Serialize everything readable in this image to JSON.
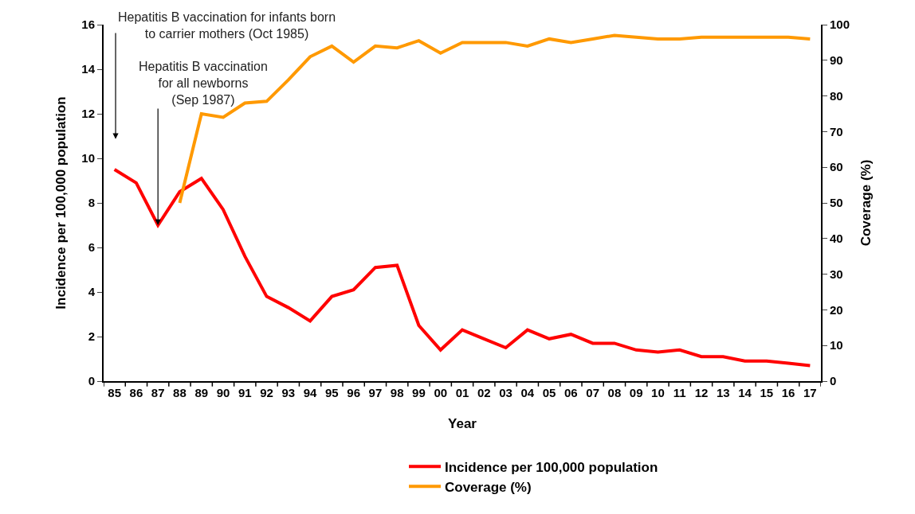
{
  "chart_data": {
    "type": "line",
    "xlabel": "Year",
    "ylabel": "Incidence per 100,000 population",
    "y2label": "Coverage (%)",
    "categories": [
      "85",
      "86",
      "87",
      "88",
      "89",
      "90",
      "91",
      "92",
      "93",
      "94",
      "95",
      "96",
      "97",
      "98",
      "99",
      "00",
      "01",
      "02",
      "03",
      "04",
      "05",
      "06",
      "07",
      "08",
      "09",
      "10",
      "11",
      "12",
      "13",
      "14",
      "15",
      "16",
      "17"
    ],
    "series": [
      {
        "name": "Incidence per 100,000 population",
        "color": "#ff0000",
        "values": [
          9.5,
          8.9,
          7.0,
          8.5,
          9.1,
          7.7,
          5.6,
          3.8,
          3.3,
          2.7,
          3.8,
          4.1,
          5.1,
          5.2,
          2.5,
          1.4,
          2.3,
          1.9,
          1.5,
          2.3,
          1.9,
          2.1,
          1.7,
          1.7,
          1.4,
          1.3,
          1.4,
          1.1,
          1.1,
          0.9,
          0.9,
          0.8,
          0.7
        ]
      },
      {
        "name": "Coverage (%)",
        "color": "#ff9900",
        "axis": "y2",
        "values": [
          null,
          null,
          null,
          50,
          75,
          74,
          78,
          78.5,
          84.5,
          91,
          94,
          89.5,
          94,
          93.5,
          95.5,
          92,
          95,
          95,
          95,
          94,
          96,
          95,
          96,
          97,
          96.5,
          96,
          96,
          96.5,
          96.5,
          96.5,
          96.5,
          96.5,
          96
        ]
      }
    ],
    "ylim": [
      0,
      16
    ],
    "yticks": [
      0,
      2,
      4,
      6,
      8,
      10,
      12,
      14,
      16
    ],
    "y2lim": [
      0,
      100
    ],
    "y2ticks": [
      0,
      10,
      20,
      30,
      40,
      50,
      60,
      70,
      80,
      90,
      100
    ],
    "annotations": [
      "Hepatitis B vaccination for infants born\nto carrier mothers (Oct 1985)",
      {
        "text": "Hepatitis B vaccination\nfor all newborns\n(Sep 1987)",
        "x": "87",
        "y": 7.0
      }
    ],
    "legend": "bottom",
    "marker": "none",
    "line_style": "solid"
  }
}
